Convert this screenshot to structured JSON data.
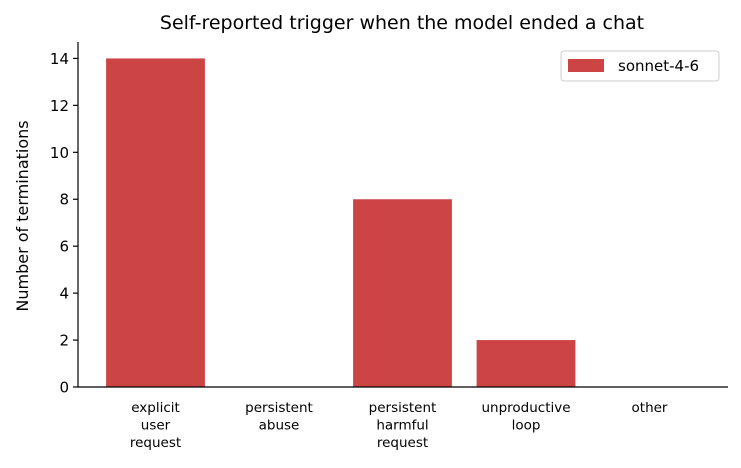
{
  "chart_data": {
    "type": "bar",
    "title": "Self-reported trigger when the model ended a chat",
    "xlabel": "",
    "ylabel": "Number of terminations",
    "categories": [
      [
        "explicit",
        "user",
        "request"
      ],
      [
        "persistent",
        "abuse"
      ],
      [
        "persistent",
        "harmful",
        "request"
      ],
      [
        "unproductive",
        "loop"
      ],
      [
        "other"
      ]
    ],
    "series": [
      {
        "name": "sonnet-4-6",
        "color": "#cc4444",
        "values": [
          14,
          0,
          8,
          2,
          0
        ]
      }
    ],
    "ylim": [
      0,
      14.7
    ],
    "yticks": [
      0,
      2,
      4,
      6,
      8,
      10,
      12,
      14
    ],
    "grid": false,
    "legend_position": "top-right"
  }
}
